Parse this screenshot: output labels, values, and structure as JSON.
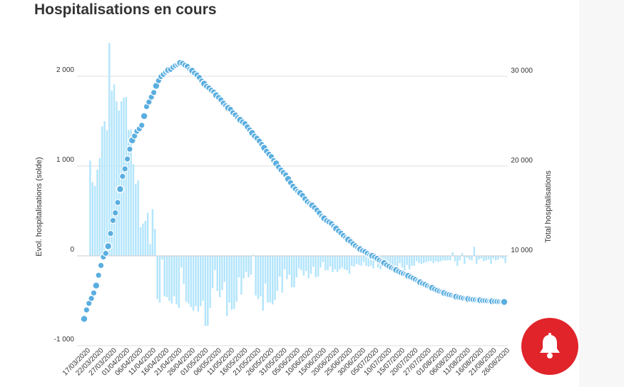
{
  "title": "Hospitalisations en cours",
  "chart_data": {
    "type": "bar+line",
    "title": "Hospitalisations en cours",
    "y_left_label": "Evol. hospitalisations (solde)",
    "y_right_label": "Total hospitalisations",
    "y_left_ticks": [
      {
        "value": 2000,
        "label": "2 000"
      },
      {
        "value": 1000,
        "label": "1 000"
      },
      {
        "value": 0,
        "label": "0"
      },
      {
        "value": -1000,
        "label": "-1 000"
      }
    ],
    "y_right_ticks": [
      {
        "value": 30000,
        "label": "30 000"
      },
      {
        "value": 20000,
        "label": "20 000"
      },
      {
        "value": 10000,
        "label": "10 000"
      }
    ],
    "y_left_range": [
      -1000,
      2000
    ],
    "y_right_range": [
      0,
      30000
    ],
    "x_start_date": "17/03/2020",
    "x_end_date": "28/08/2020",
    "x_tick_labels": [
      "17/03/2020",
      "22/03/2020",
      "27/03/2020",
      "01/04/2020",
      "06/04/2020",
      "11/04/2020",
      "16/04/2020",
      "21/04/2020",
      "26/04/2020",
      "01/05/2020",
      "06/05/2020",
      "11/05/2020",
      "16/05/2020",
      "21/05/2020",
      "26/05/2020",
      "31/05/2020",
      "05/06/2020",
      "10/06/2020",
      "15/06/2020",
      "20/06/2020",
      "25/06/2020",
      "30/06/2020",
      "05/07/2020",
      "10/07/2020",
      "15/07/2020",
      "20/07/2020",
      "27/07/2020",
      "01/08/2020",
      "06/08/2020",
      "11/08/2020",
      "16/08/2020",
      "21/08/2020",
      "26/08/2020"
    ],
    "bar_color": "#b3e5fc",
    "line_color": "#5aaee0",
    "series": [
      {
        "name": "Evol. hospitalisations (solde)",
        "type": "bar",
        "axis": "left",
        "values": [
          1060,
          820,
          780,
          960,
          1090,
          1440,
          1500,
          1400,
          2370,
          1840,
          1910,
          1720,
          1620,
          1720,
          1760,
          1770,
          1400,
          1410,
          1020,
          800,
          840,
          320,
          360,
          390,
          480,
          130,
          520,
          300,
          -480,
          -520,
          -40,
          -450,
          -460,
          -500,
          -530,
          -450,
          -540,
          -580,
          -130,
          -310,
          -510,
          -530,
          -570,
          -610,
          -560,
          -620,
          -560,
          -500,
          -780,
          -780,
          -580,
          -360,
          -160,
          -390,
          -460,
          -380,
          -290,
          -670,
          -520,
          -600,
          -590,
          -510,
          -240,
          -430,
          -250,
          -180,
          -240,
          -210,
          10,
          -440,
          -480,
          -450,
          -610,
          -310,
          -520,
          -520,
          -540,
          -490,
          -390,
          -230,
          -410,
          -150,
          -260,
          -210,
          -350,
          -350,
          -240,
          -140,
          -160,
          -220,
          -170,
          -250,
          -200,
          -120,
          -240,
          -230,
          -130,
          -70,
          -160,
          -160,
          -120,
          -180,
          -150,
          -180,
          -150,
          -130,
          -150,
          -160,
          -200,
          -110,
          -120,
          -90,
          -100,
          -110,
          -70,
          -110,
          -120,
          -110,
          -140,
          -70,
          -130,
          -150,
          -120,
          -110,
          -130,
          -90,
          -130,
          -110,
          -120,
          -80,
          -130,
          -250,
          -100,
          -150,
          -110,
          -110,
          -60,
          -80,
          -90,
          -80,
          -70,
          -60,
          -60,
          -80,
          -60,
          -70,
          -60,
          -50,
          -50,
          -50,
          -50,
          40,
          -60,
          -110,
          -50,
          30,
          -90,
          -20,
          -40,
          -50,
          100,
          -90,
          -40,
          -30,
          -60,
          -50,
          -40,
          -90,
          -30,
          -50,
          -40,
          -20,
          -30,
          -80
        ]
      },
      {
        "name": "Total hospitalisations",
        "type": "line",
        "axis": "right",
        "values": [
          2980,
          3980,
          4710,
          5260,
          5870,
          6690,
          7840,
          8930,
          9870,
          10280,
          11070,
          12490,
          13940,
          14790,
          15940,
          17430,
          18850,
          19690,
          20790,
          21880,
          22860,
          23350,
          23880,
          24150,
          24540,
          25560,
          26620,
          27130,
          27680,
          28190,
          28930,
          29510,
          29970,
          30210,
          30460,
          30690,
          30770,
          31010,
          31190,
          31300,
          31490,
          31430,
          31230,
          31100,
          30780,
          30610,
          30350,
          30140,
          29860,
          29480,
          29170,
          28870,
          28690,
          28440,
          28240,
          27880,
          27640,
          27370,
          27010,
          26720,
          26470,
          26310,
          25940,
          25690,
          25390,
          25140,
          24910,
          24720,
          24360,
          24020,
          23680,
          23330,
          23100,
          22780,
          22400,
          22030,
          21640,
          21320,
          21050,
          20610,
          20290,
          19890,
          19560,
          19270,
          19010,
          18560,
          18150,
          17750,
          17440,
          17180,
          16990,
          16720,
          16350,
          16020,
          15810,
          15610,
          15370,
          15090,
          14770,
          14410,
          14170,
          13910,
          13760,
          13590,
          13290,
          13040,
          12760,
          12530,
          12260,
          12010,
          11810,
          11590,
          11340,
          11120,
          10920,
          10740,
          10580,
          10470,
          10280,
          10120,
          9990,
          9860,
          9710,
          9510,
          9360,
          9200,
          8990,
          8830,
          8670,
          8540,
          8420,
          8260,
          8130,
          8020,
          7920,
          7770,
          7640,
          7510,
          7370,
          7210,
          7060,
          6920,
          6820,
          6660,
          6540,
          6430,
          6290,
          6160,
          6050,
          5960,
          5860,
          5770,
          5680,
          5610,
          5520,
          5450,
          5390,
          5340,
          5280,
          5250,
          5200,
          5170,
          5130,
          5110,
          5080,
          5060,
          5030,
          5010,
          4980,
          4960,
          4940,
          4920,
          4910,
          4890,
          4880,
          4870
        ]
      }
    ],
    "grid": true,
    "legend": "none"
  }
}
